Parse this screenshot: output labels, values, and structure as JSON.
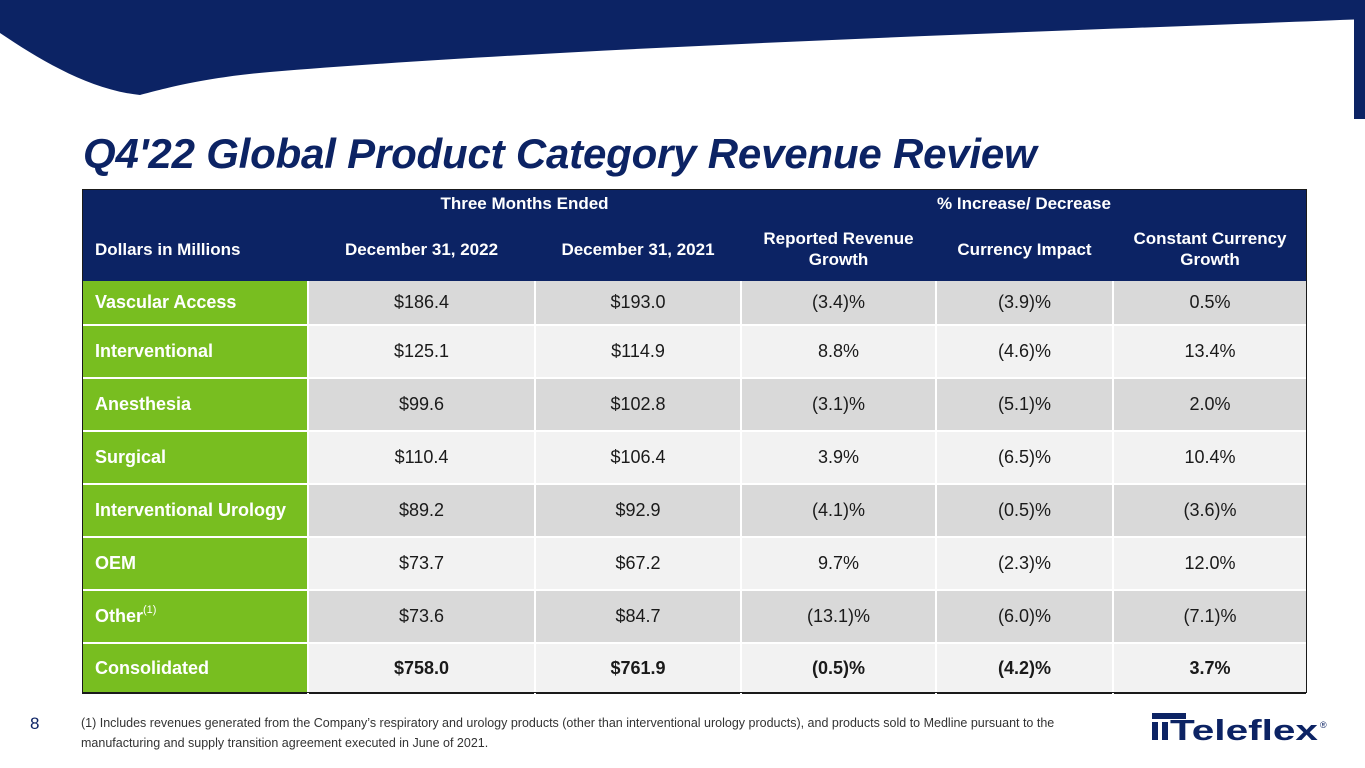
{
  "slide": {
    "title": "Q4'22 Global Product Category Revenue Review",
    "page_number": "8",
    "footnote": "(1) Includes revenues generated from the Company’s respiratory and urology products (other than interventional urology products), and products sold to Medline pursuant to the manufacturing and supply transition agreement executed in June of 2021.",
    "logo_text": "Teleflex",
    "logo_mark": "®"
  },
  "table": {
    "group_headers": {
      "three_months": "Three Months Ended",
      "pct_change": "% Increase/ Decrease"
    },
    "columns": {
      "c0": "Dollars in Millions",
      "c1": "December 31, 2022",
      "c2": "December 31, 2021",
      "c3": "Reported Revenue Growth",
      "c4": "Currency Impact",
      "c5": "Constant Currency Growth"
    },
    "rows": [
      {
        "category": "Vascular Access",
        "note": "",
        "dec_2022": "$186.4",
        "dec_2021": "$193.0",
        "reported": "(3.4)%",
        "currency": "(3.9)%",
        "constant": "0.5%"
      },
      {
        "category": "Interventional",
        "note": "",
        "dec_2022": "$125.1",
        "dec_2021": "$114.9",
        "reported": "8.8%",
        "currency": "(4.6)%",
        "constant": "13.4%"
      },
      {
        "category": "Anesthesia",
        "note": "",
        "dec_2022": "$99.6",
        "dec_2021": "$102.8",
        "reported": "(3.1)%",
        "currency": "(5.1)%",
        "constant": "2.0%"
      },
      {
        "category": "Surgical",
        "note": "",
        "dec_2022": "$110.4",
        "dec_2021": "$106.4",
        "reported": "3.9%",
        "currency": "(6.5)%",
        "constant": "10.4%"
      },
      {
        "category": "Interventional Urology",
        "note": "",
        "dec_2022": "$89.2",
        "dec_2021": "$92.9",
        "reported": "(4.1)%",
        "currency": "(0.5)%",
        "constant": "(3.6)%"
      },
      {
        "category": "OEM",
        "note": "",
        "dec_2022": "$73.7",
        "dec_2021": "$67.2",
        "reported": "9.7%",
        "currency": "(2.3)%",
        "constant": "12.0%"
      },
      {
        "category": "Other",
        "note": "(1)",
        "dec_2022": "$73.6",
        "dec_2021": "$84.7",
        "reported": "(13.1)%",
        "currency": "(6.0)%",
        "constant": "(7.1)%"
      },
      {
        "category": "Consolidated",
        "note": "",
        "dec_2022": "$758.0",
        "dec_2021": "$761.9",
        "reported": "(0.5)%",
        "currency": "(4.2)%",
        "constant": "3.7%"
      }
    ]
  },
  "colors": {
    "navy": "#0c2364",
    "green": "#78be20",
    "row_dark": "#d9d9d9",
    "row_light": "#f2f2f2"
  }
}
